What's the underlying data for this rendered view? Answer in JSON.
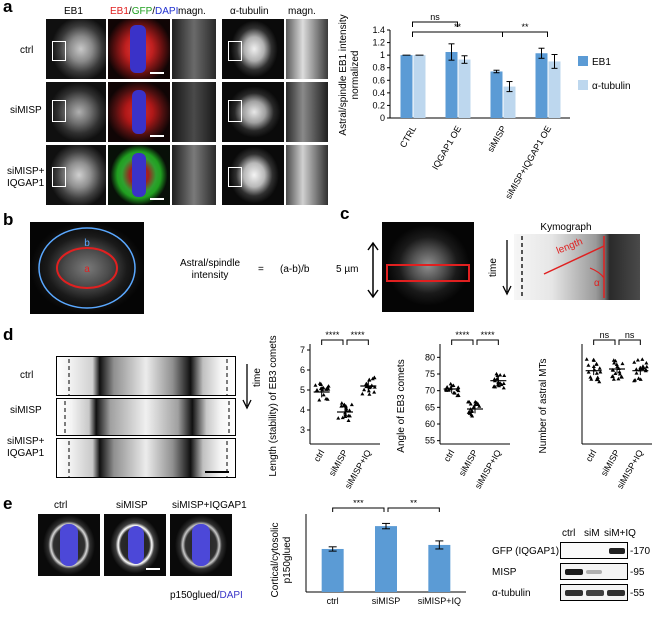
{
  "panels": {
    "a": "a",
    "b": "b",
    "c": "c",
    "d": "d",
    "e": "e"
  },
  "a": {
    "col_labels": [
      "EB1",
      "EB1",
      "/",
      "GFP",
      "/",
      "DAPI",
      "magn.",
      "α-tubulin",
      "magn."
    ],
    "row_labels": [
      "ctrl",
      "siMISP",
      "siMISP+",
      "IQGAP1"
    ],
    "chart": {
      "ylabel1": "Astral/spindle EB1 intensity",
      "ylabel2": "normalized",
      "yticks": [
        "0",
        "0.2",
        "0.4",
        "0.6",
        "0.8",
        "1",
        "1.2",
        "1.4"
      ],
      "legend": [
        "EB1",
        "α-tubulin"
      ],
      "sig": [
        "ns",
        "**",
        "**"
      ]
    }
  },
  "b": {
    "inner_label": "a",
    "outer_label": "b",
    "formula_lhs1": "Astral/spindle",
    "formula_lhs2": "intensity",
    "formula_eq": "=",
    "formula_rhs": "(a-b)/b"
  },
  "c": {
    "scale": "5 µm",
    "kymo_title": "Kymograph",
    "time": "time",
    "length": "length",
    "alpha": "α"
  },
  "d": {
    "row_labels": [
      "ctrl",
      "siMISP",
      "siMISP+",
      "IQGAP1"
    ],
    "time": "time",
    "plots": [
      {
        "ylabel": "Length (stability) of EB3 comets",
        "yticks": [
          "3",
          "4",
          "5",
          "6",
          "7"
        ],
        "sig": [
          "****",
          "****"
        ]
      },
      {
        "ylabel": "Angle of EB3 comets",
        "yticks": [
          "55",
          "60",
          "65",
          "70",
          "75",
          "80"
        ],
        "sig": [
          "****",
          "****"
        ]
      },
      {
        "ylabel": "Number of astral MTs",
        "yticks": [],
        "sig": [
          "ns",
          "ns"
        ]
      }
    ]
  },
  "e": {
    "img_labels": [
      "ctrl",
      "siMISP",
      "siMISP+IQGAP1"
    ],
    "stain": [
      "p150glued",
      "/",
      "DAPI"
    ],
    "chart": {
      "ylabel1": "Cortical/cytosolic",
      "ylabel2": "p150glued",
      "sig": [
        "***",
        "**"
      ]
    },
    "blot": {
      "lanes": [
        "ctrl",
        "siM",
        "siM+IQ"
      ],
      "rows": [
        "GFP (IQGAP1)",
        "MISP",
        "α-tubulin"
      ],
      "mw": [
        "-170",
        "-95",
        "-55"
      ]
    }
  },
  "chart_data": [
    {
      "type": "bar",
      "panel": "a",
      "categories": [
        "CTRL",
        "IQGAP1 OE",
        "siMISP",
        "siMISP+IQGAP1 OE"
      ],
      "series": [
        {
          "name": "EB1",
          "values": [
            1.0,
            1.05,
            0.74,
            1.03
          ],
          "errors": [
            0.0,
            0.13,
            0.02,
            0.08
          ],
          "color": "#5b9bd5"
        },
        {
          "name": "α-tubulin",
          "values": [
            1.0,
            0.93,
            0.5,
            0.9
          ],
          "errors": [
            0.0,
            0.06,
            0.08,
            0.11
          ],
          "color": "#bdd7ee"
        }
      ],
      "ylim": [
        0,
        1.4
      ],
      "ylabel": "Astral/spindle EB1 intensity normalized",
      "legend": "right"
    },
    {
      "type": "scatter",
      "panel": "d",
      "categories": [
        "ctrl",
        "siMISP",
        "siMISP+IQ"
      ],
      "ylabel": "Length (stability) of EB3 comets",
      "ylim": [
        2.3,
        7.3
      ],
      "means": [
        4.9,
        3.9,
        5.2
      ]
    },
    {
      "type": "scatter",
      "panel": "d",
      "categories": [
        "ctrl",
        "siMISP",
        "siMISP+IQ"
      ],
      "ylabel": "Angle of EB3 comets",
      "ylim": [
        54,
        84
      ],
      "means": [
        70.5,
        64.5,
        73
      ]
    },
    {
      "type": "scatter",
      "panel": "d",
      "categories": [
        "ctrl",
        "siMISP",
        "siMISP+IQ"
      ],
      "ylabel": "Number of astral MTs",
      "ylim": [
        0,
        30
      ],
      "means": [
        22,
        22.5,
        22
      ]
    },
    {
      "type": "bar",
      "panel": "e",
      "categories": [
        "ctrl",
        "siMISP",
        "siMISP+IQ"
      ],
      "values": [
        1.6,
        2.45,
        1.75
      ],
      "errors": [
        0.08,
        0.1,
        0.15
      ],
      "ylabel": "Cortical/cytosolic p150glued",
      "ylim": [
        0,
        2.9
      ],
      "color": "#5b9bd5"
    }
  ]
}
